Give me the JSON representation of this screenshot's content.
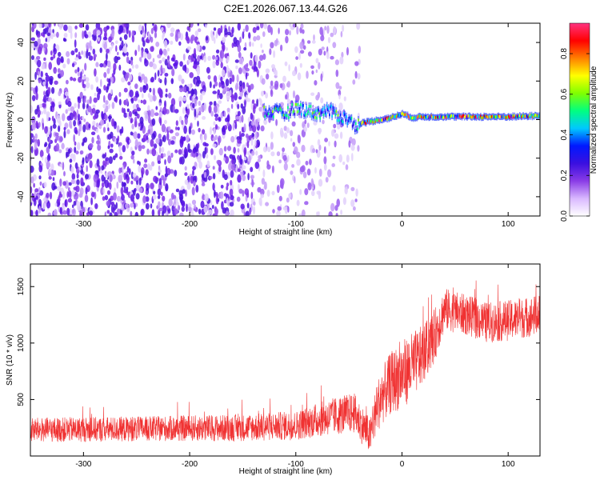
{
  "title": "C2E1.2026.067.13.44.G26",
  "chart_data": [
    {
      "type": "heatmap",
      "name": "spectrogram",
      "xlabel": "Height of straight line (km)",
      "ylabel": "Frequency (Hz)",
      "xlim": [
        -350,
        130
      ],
      "ylim": [
        -50,
        50
      ],
      "x_ticks": [
        -300,
        -200,
        -100,
        0,
        100
      ],
      "y_ticks": [
        -40,
        -20,
        0,
        20,
        40
      ],
      "x_tick_labels": [
        "-300",
        "-200",
        "-100",
        "0",
        "100"
      ],
      "y_tick_labels": [
        "-40",
        "-20",
        "0",
        "20",
        "40"
      ],
      "colorbar": {
        "label": "Normalized spectral amplitude",
        "range": [
          0,
          0.95
        ],
        "ticks": [
          0.0,
          0.2,
          0.4,
          0.6,
          0.8
        ],
        "tick_labels": [
          "0.0",
          "0.2",
          "0.4",
          "0.6",
          "0.8"
        ],
        "colormap": [
          "#ffffff",
          "#d9b8ff",
          "#8a3ce6",
          "#3a10e0",
          "#0018ff",
          "#00c8ff",
          "#00ff80",
          "#80ff00",
          "#ffff00",
          "#ff8000",
          "#ff0000",
          "#ff3380"
        ]
      },
      "noise_region": {
        "x": [
          -350,
          -40
        ],
        "amplitude": 0.05,
        "fade_start": -135
      },
      "carrier_line": {
        "x": [
          -130,
          -120,
          -110,
          -100,
          -90,
          -80,
          -70,
          -60,
          -50,
          -45,
          -40,
          -30,
          -20,
          -10,
          0,
          10,
          20,
          40,
          60,
          80,
          100,
          130
        ],
        "freq": [
          4,
          4,
          3,
          6,
          5,
          3,
          5,
          2,
          0,
          -3,
          -2,
          -1,
          0,
          1,
          3,
          1,
          1.5,
          1.5,
          1.5,
          1.5,
          1.5,
          2
        ]
      }
    },
    {
      "type": "line",
      "name": "snr",
      "xlabel": "Height of straight line (km)",
      "ylabel": "SNR (10 * v/v)",
      "xlim": [
        -350,
        130
      ],
      "ylim": [
        0,
        1700
      ],
      "x_ticks": [
        -300,
        -200,
        -100,
        0,
        100
      ],
      "y_ticks": [
        500,
        1000,
        1500
      ],
      "x_tick_labels": [
        "-300",
        "-200",
        "-100",
        "0",
        "100"
      ],
      "y_tick_labels": [
        "500",
        "1000",
        "1500"
      ],
      "color": "#f03232",
      "series": [
        {
          "name": "SNR",
          "x": [
            -350,
            -250,
            -150,
            -100,
            -80,
            -60,
            -45,
            -30,
            -25,
            -20,
            -10,
            0,
            10,
            20,
            30,
            40,
            60,
            80,
            100,
            130
          ],
          "mean": [
            230,
            240,
            250,
            270,
            320,
            360,
            380,
            170,
            380,
            520,
            650,
            720,
            800,
            900,
            1050,
            1300,
            1250,
            1180,
            1200,
            1250
          ],
          "spread": [
            110,
            110,
            120,
            130,
            150,
            170,
            180,
            160,
            220,
            250,
            280,
            300,
            300,
            260,
            240,
            190,
            180,
            180,
            180,
            180
          ]
        }
      ]
    }
  ]
}
